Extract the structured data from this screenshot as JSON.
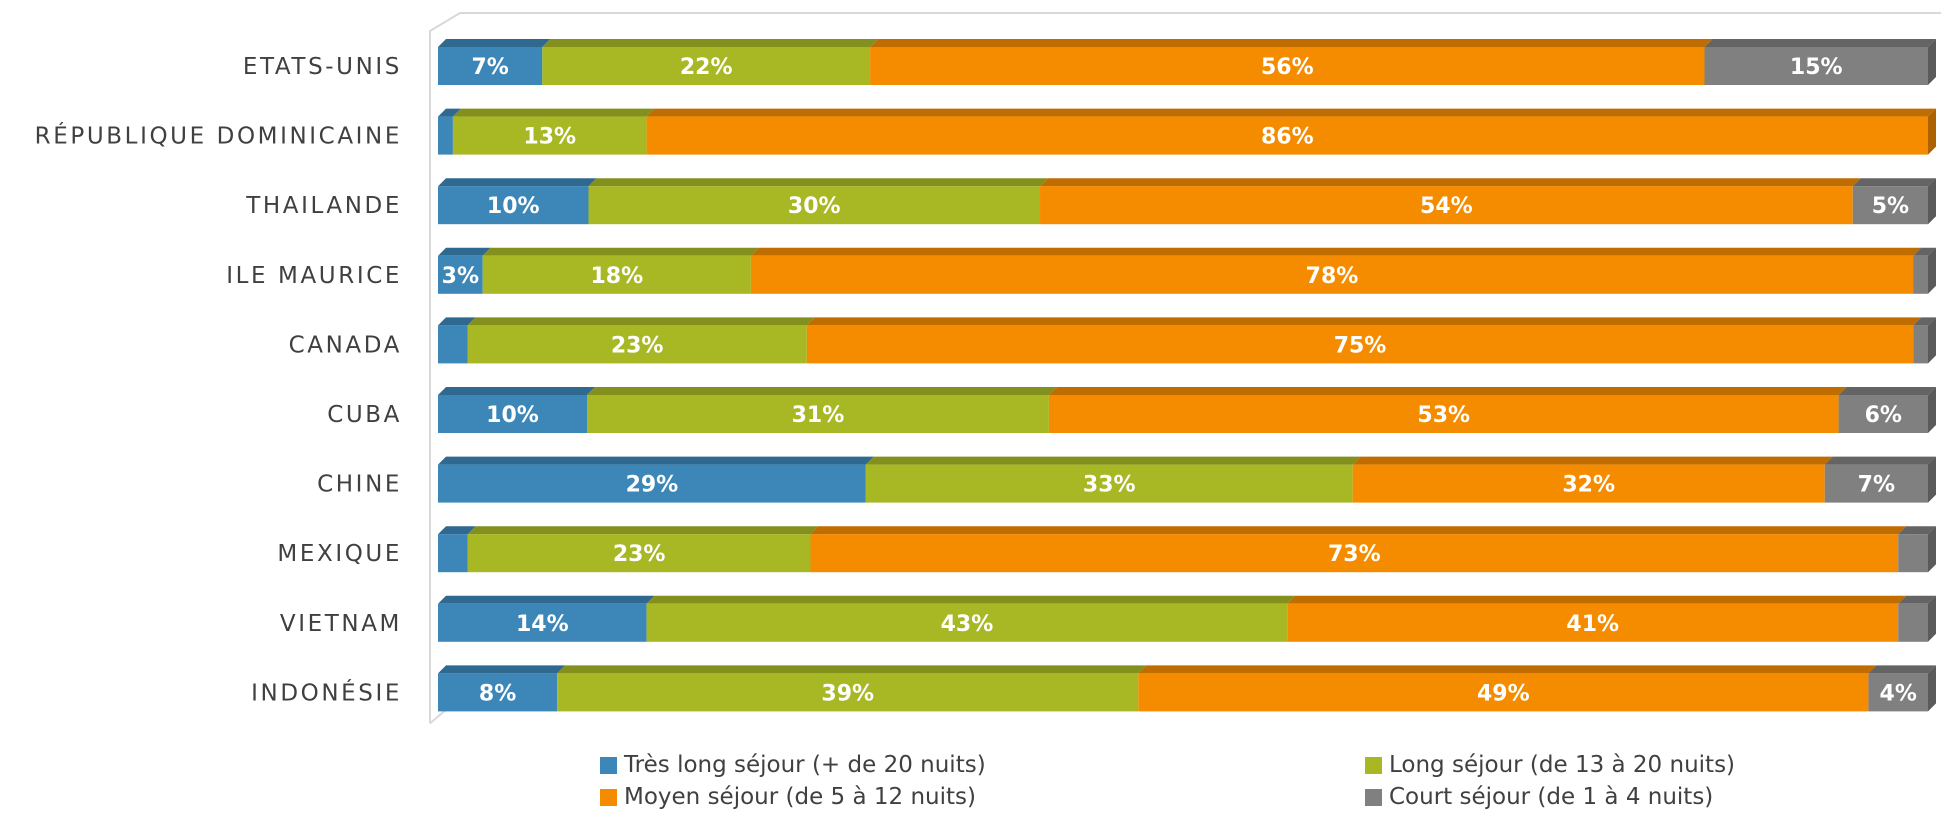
{
  "chart_data": {
    "type": "bar",
    "orientation": "horizontal",
    "stacked": true,
    "categories": [
      "ETATS-UNIS",
      "RÉPUBLIQUE DOMINICAINE",
      "THAILANDE",
      "ILE MAURICE",
      "CANADA",
      "CUBA",
      "CHINE",
      "MEXIQUE",
      "VIETNAM",
      "INDONÉSIE"
    ],
    "series": [
      {
        "name": "Très long séjour (+ de 20 nuits)",
        "color": "#3d87b8",
        "values": [
          7,
          1,
          10,
          3,
          2,
          10,
          29,
          2,
          14,
          8
        ]
      },
      {
        "name": "Long séjour (de 13 à 20 nuits)",
        "color": "#a8b825",
        "values": [
          22,
          13,
          30,
          18,
          23,
          31,
          33,
          23,
          43,
          39
        ]
      },
      {
        "name": "Moyen séjour (de 5 à 12 nuits)",
        "color": "#f58c00",
        "values": [
          56,
          86,
          54,
          78,
          75,
          53,
          32,
          73,
          41,
          49
        ]
      },
      {
        "name": "Court séjour (de 1 à 4 nuits)",
        "color": "#808080",
        "values": [
          15,
          0,
          5,
          1,
          1,
          6,
          7,
          2,
          2,
          4
        ]
      }
    ],
    "data_labels": [
      [
        "7%",
        "22%",
        "56%",
        "15%"
      ],
      [
        "",
        "13%",
        "86%",
        ""
      ],
      [
        "10%",
        "30%",
        "54%",
        "5%"
      ],
      [
        "3%",
        "18%",
        "78%",
        ""
      ],
      [
        "",
        "23%",
        "75%",
        ""
      ],
      [
        "10%",
        "31%",
        "53%",
        "6%"
      ],
      [
        "29%",
        "33%",
        "32%",
        "7%"
      ],
      [
        "",
        "23%",
        "73%",
        ""
      ],
      [
        "14%",
        "43%",
        "41%",
        ""
      ],
      [
        "8%",
        "39%",
        "49%",
        "4%"
      ]
    ],
    "xlim": [
      0,
      100
    ],
    "grid": false,
    "legend_position": "bottom",
    "title": "",
    "xlabel": "",
    "ylabel": ""
  }
}
